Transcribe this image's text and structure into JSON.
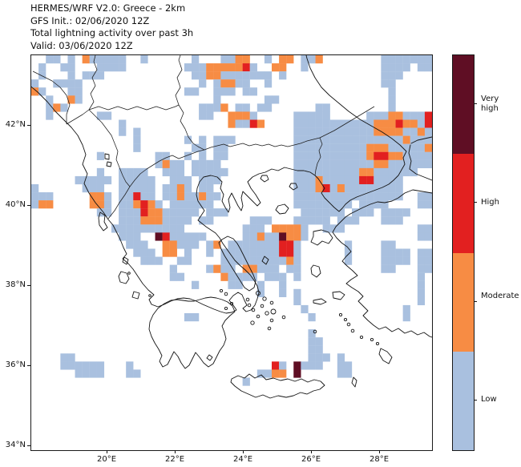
{
  "title": {
    "lines": [
      "HERMES/WRF V2.0: Greece - 2km",
      "GFS Init.: 02/06/2020 12Z",
      "Total lightning activity over past 3h",
      "Valid: 03/06/2020 12Z"
    ]
  },
  "axes": {
    "lat_tick_labels": [
      "42°N",
      "40°N",
      "38°N",
      "36°N",
      "34°N"
    ],
    "lon_tick_labels": [
      "20°E",
      "22°E",
      "24°E",
      "26°E",
      "28°E"
    ],
    "lat_tick_values": [
      42,
      40,
      38,
      36,
      34
    ],
    "lon_tick_values": [
      20,
      22,
      24,
      26,
      28
    ]
  },
  "legend": {
    "labels": [
      "Very high",
      "High",
      "Moderate",
      "Low"
    ],
    "segment_colors": [
      "#5f0e24",
      "#e22020",
      "#f78c44",
      "#a9c0df"
    ],
    "palette": {
      "very_high": "#5f0e24",
      "high": "#e22020",
      "moderate": "#f78c44",
      "low": "#a9c0df"
    }
  },
  "chart_data": {
    "type": "heatmap",
    "title": "Total lightning activity over past 3h",
    "model": "HERMES/WRF V2.0: Greece - 2km",
    "init": "GFS Init.: 02/06/2020 12Z",
    "valid": "Valid: 03/06/2020 12Z",
    "x_axis": {
      "tick_labels": [
        "20°E",
        "22°E",
        "24°E",
        "26°E",
        "28°E"
      ],
      "approx_range_deg_lon": [
        17.8,
        29.5
      ]
    },
    "y_axis": {
      "tick_labels": [
        "42°N",
        "40°N",
        "38°N",
        "36°N",
        "34°N"
      ],
      "approx_range_deg_lat": [
        33.9,
        43.8
      ]
    },
    "categories": [
      "Low",
      "Moderate",
      "High",
      "Very high"
    ],
    "legend_position": "right-colorbar",
    "grid": {
      "cols": 55,
      "rows": 49,
      "cell_key": {
        "l": "low",
        "m": "moderate",
        "h": "high",
        "v": "very_high",
        ".": "none"
      },
      "rows_data": [
        "..ll.l.mlllll..l......l...llmm..l.mm.llm........lllllll",
        ".l..ll...llll........lllmmmmmhl..mm..l..........llll.ll",
        ".l...l.lll............llmmlllllll.l.............lll....",
        "l..llll................l.lmmll..l...............ll.....",
        "ml...ll..............ll..lll.ll..................l.....",
        "..l..ml..................l......ll...............l.....",
        "..lml..................lllm.ll.ll......ll........l.....",
        "..l......ll............ll..mmml.....lllll.....lllmmlllh",
        "............l..............mllhm....lllllllllllmmmhmmlh",
        "............l.l.....................lllllllllllmmmmllml",
        "..............l......l.l.lll........lllllllllllllllmlll",
        "..............l.......ll.ll.........llllllllllmmmlllllm",
        ".........l.......ll..l.l.ll.........llllllllllmhhmmllll",
        ".................lmll.llll..........lllllllllllmmllllll",
        ".........l..llll..lll.lllll.........lllllllllmmllllll..",
        "......lllll.lllll..lll.lll..........lllmlllllhhllll....",
        "l......lll..lllll.llml.ll...........lllmhlmllllllll....",
        "lll.....mml.llhll.llmllmll..........lllllllllllllll..ll",
        "lmm.....mml.llmhml.llllll...........llllllll.llll....ll",
        ".........ll.lllhmmlllll.lll..........llllll.lll.llll...",
        "............lllmmmllll.ll.....lll...lllll.lll...lll....",
        "...........llllllllll........lll.mmmml..lll..........ll",
        "............lll..vhlllll.....llmllvmml...............ll",
        ".............lll..mmlll.lm.lllllllhhl......l....ll.....",
        "..............lll.mm.l..l.llllllllhhl......l....llll.ll",
        "...............lll..ll....lllllllllml......l....llll.ll",
        "...................l....lmll.mmlll.ll...........ll...ll",
        "...................ll.....mllll.lll.l................l.",
        "......................l....ll..l..l..................l.",
        "...............................l..l.l................l.",
        "....................................l................l.",
        ".....................................l.............l...",
        ".....................ll...............l............l...",
        ".......................................................",
        "......................................l................",
        "......................................ll...............",
        "......................................ll...............",
        "....ll................................lll.l............",
        "....llllll...l...................hl.vlll..ll...........",
        "......llll...ll................llmm.v.....ll...........",
        ".............................l.........................",
        ".......................................................",
        ".......................................................",
        ".......................................................",
        ".......................................................",
        ".......................................................",
        ".......................................................",
        ".......................................................",
        "......................................................."
      ]
    }
  }
}
